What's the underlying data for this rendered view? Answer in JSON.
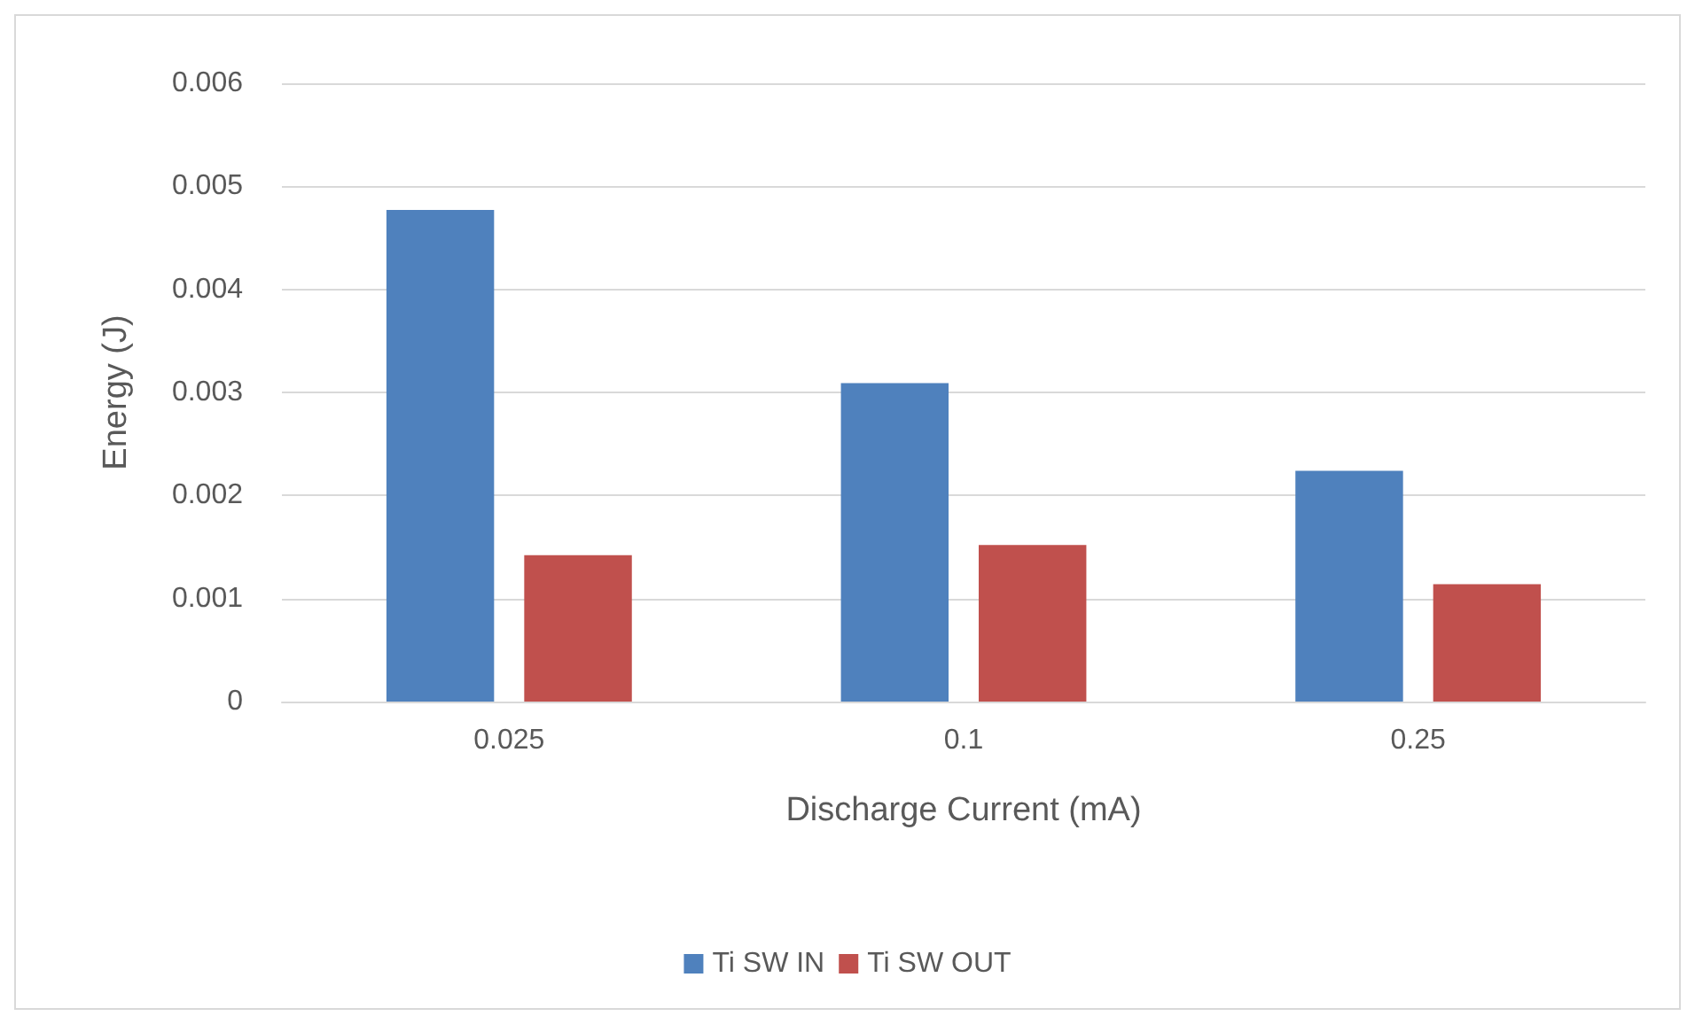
{
  "chart_data": {
    "type": "bar",
    "xlabel": "Discharge Current (mA)",
    "ylabel": "Energy (J)",
    "categories": [
      "0.025",
      "0.1",
      "0.25"
    ],
    "series": [
      {
        "name": "Ti SW IN",
        "color": "#4f81bd",
        "values": [
          0.00477,
          0.00309,
          0.00224
        ]
      },
      {
        "name": "Ti SW OUT",
        "color": "#c0504d",
        "values": [
          0.00142,
          0.00152,
          0.00114
        ]
      }
    ],
    "ylim": [
      0,
      0.006
    ],
    "yticks": [
      0,
      0.001,
      0.002,
      0.003,
      0.004,
      0.005,
      0.006
    ],
    "grid": "y",
    "legend": "bottom"
  }
}
